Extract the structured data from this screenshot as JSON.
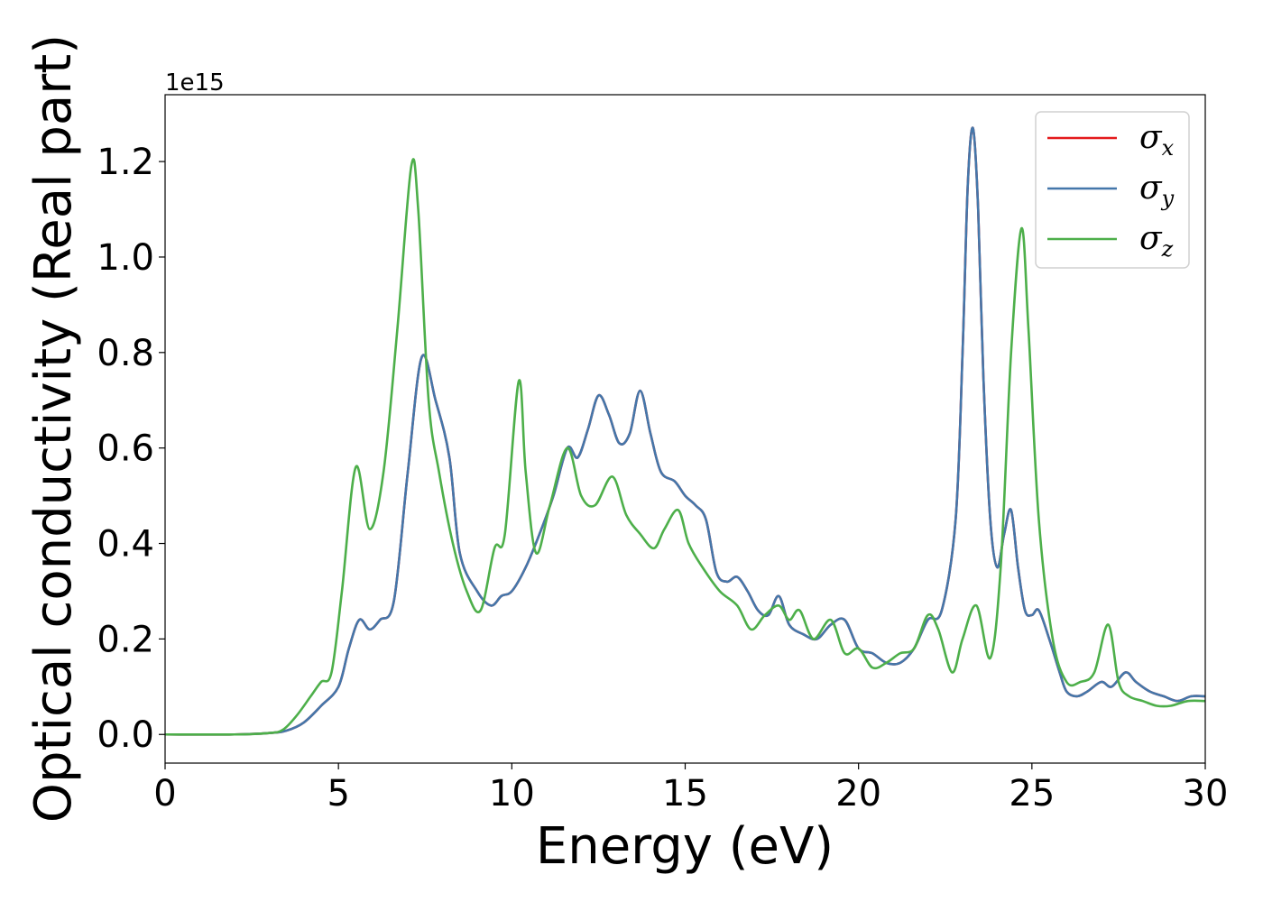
{
  "chart_data": {
    "type": "line",
    "title": "",
    "xlabel": "Energy (eV)",
    "ylabel": "Optical conductivity (Real part)",
    "y_offset_label": "1e15",
    "xlim": [
      0,
      30
    ],
    "ylim": [
      -0.06,
      1.34
    ],
    "xticks": [
      0,
      5,
      10,
      15,
      20,
      25,
      30
    ],
    "xtick_labels": [
      "0",
      "5",
      "10",
      "15",
      "20",
      "25",
      "30"
    ],
    "yticks": [
      0.0,
      0.2,
      0.4,
      0.6,
      0.8,
      1.0,
      1.2
    ],
    "ytick_labels": [
      "0.0",
      "0.2",
      "0.4",
      "0.6",
      "0.8",
      "1.0",
      "1.2"
    ],
    "grid": false,
    "legend_position": "upper-right",
    "series": [
      {
        "name": "σx",
        "legend_base": "σ",
        "legend_sub": "x",
        "color": "#e41a1c",
        "x": [
          0,
          2,
          3,
          3.5,
          4,
          4.5,
          5,
          5.3,
          5.6,
          5.9,
          6.2,
          6.6,
          7.0,
          7.4,
          7.8,
          8.2,
          8.5,
          9.0,
          9.4,
          9.7,
          10.0,
          10.4,
          10.8,
          11.2,
          11.6,
          11.9,
          12.2,
          12.5,
          12.8,
          13.1,
          13.4,
          13.7,
          14.0,
          14.3,
          14.7,
          15.0,
          15.3,
          15.6,
          15.9,
          16.2,
          16.5,
          16.8,
          17.1,
          17.4,
          17.7,
          18.0,
          18.4,
          18.8,
          19.2,
          19.6,
          20.0,
          20.4,
          20.8,
          21.2,
          21.6,
          22.0,
          22.4,
          22.8,
          23.0,
          23.15,
          23.3,
          23.45,
          23.6,
          23.8,
          24.0,
          24.2,
          24.4,
          24.6,
          24.8,
          25.0,
          25.2,
          25.5,
          25.8,
          26.0,
          26.3,
          26.6,
          27.0,
          27.3,
          27.7,
          28.0,
          28.4,
          28.8,
          29.2,
          29.6,
          30
        ],
        "values": [
          0,
          0,
          0.003,
          0.008,
          0.025,
          0.06,
          0.1,
          0.18,
          0.24,
          0.22,
          0.24,
          0.28,
          0.55,
          0.79,
          0.7,
          0.58,
          0.38,
          0.3,
          0.27,
          0.29,
          0.3,
          0.35,
          0.42,
          0.5,
          0.6,
          0.58,
          0.64,
          0.71,
          0.67,
          0.61,
          0.63,
          0.72,
          0.63,
          0.55,
          0.53,
          0.5,
          0.48,
          0.45,
          0.34,
          0.32,
          0.33,
          0.3,
          0.26,
          0.25,
          0.29,
          0.23,
          0.21,
          0.2,
          0.23,
          0.24,
          0.18,
          0.17,
          0.15,
          0.15,
          0.18,
          0.24,
          0.26,
          0.45,
          0.8,
          1.15,
          1.27,
          1.1,
          0.75,
          0.45,
          0.35,
          0.42,
          0.47,
          0.35,
          0.26,
          0.25,
          0.26,
          0.2,
          0.13,
          0.09,
          0.08,
          0.09,
          0.11,
          0.1,
          0.13,
          0.11,
          0.09,
          0.08,
          0.07,
          0.08,
          0.08
        ]
      },
      {
        "name": "σy",
        "legend_base": "σ",
        "legend_sub": "y",
        "color": "#4477aa",
        "x": [
          0,
          2,
          3,
          3.5,
          4,
          4.5,
          5,
          5.3,
          5.6,
          5.9,
          6.2,
          6.6,
          7.0,
          7.4,
          7.8,
          8.2,
          8.5,
          9.0,
          9.4,
          9.7,
          10.0,
          10.4,
          10.8,
          11.2,
          11.6,
          11.9,
          12.2,
          12.5,
          12.8,
          13.1,
          13.4,
          13.7,
          14.0,
          14.3,
          14.7,
          15.0,
          15.3,
          15.6,
          15.9,
          16.2,
          16.5,
          16.8,
          17.1,
          17.4,
          17.7,
          18.0,
          18.4,
          18.8,
          19.2,
          19.6,
          20.0,
          20.4,
          20.8,
          21.2,
          21.6,
          22.0,
          22.4,
          22.8,
          23.0,
          23.15,
          23.3,
          23.45,
          23.6,
          23.8,
          24.0,
          24.2,
          24.4,
          24.6,
          24.8,
          25.0,
          25.2,
          25.5,
          25.8,
          26.0,
          26.3,
          26.6,
          27.0,
          27.3,
          27.7,
          28.0,
          28.4,
          28.8,
          29.2,
          29.6,
          30
        ],
        "values": [
          0,
          0,
          0.003,
          0.008,
          0.025,
          0.06,
          0.1,
          0.18,
          0.24,
          0.22,
          0.24,
          0.28,
          0.55,
          0.79,
          0.7,
          0.58,
          0.38,
          0.3,
          0.27,
          0.29,
          0.3,
          0.35,
          0.42,
          0.5,
          0.6,
          0.58,
          0.64,
          0.71,
          0.67,
          0.61,
          0.63,
          0.72,
          0.63,
          0.55,
          0.53,
          0.5,
          0.48,
          0.45,
          0.34,
          0.32,
          0.33,
          0.3,
          0.26,
          0.25,
          0.29,
          0.23,
          0.21,
          0.2,
          0.23,
          0.24,
          0.18,
          0.17,
          0.15,
          0.15,
          0.18,
          0.24,
          0.26,
          0.45,
          0.8,
          1.15,
          1.27,
          1.1,
          0.75,
          0.45,
          0.35,
          0.42,
          0.47,
          0.35,
          0.26,
          0.25,
          0.26,
          0.2,
          0.13,
          0.09,
          0.08,
          0.09,
          0.11,
          0.1,
          0.13,
          0.11,
          0.09,
          0.08,
          0.07,
          0.08,
          0.08
        ]
      },
      {
        "name": "σz",
        "legend_base": "σ",
        "legend_sub": "z",
        "color": "#4daf4a",
        "x": [
          0,
          2,
          3,
          3.4,
          3.8,
          4.2,
          4.5,
          4.8,
          5.1,
          5.5,
          5.9,
          6.3,
          6.7,
          7.1,
          7.3,
          7.6,
          7.9,
          8.3,
          8.7,
          9.1,
          9.5,
          9.8,
          10.2,
          10.4,
          10.7,
          11.1,
          11.6,
          12.0,
          12.4,
          12.9,
          13.3,
          13.7,
          14.1,
          14.4,
          14.8,
          15.1,
          15.5,
          16.0,
          16.5,
          16.9,
          17.3,
          17.7,
          18.0,
          18.3,
          18.7,
          19.2,
          19.6,
          20.0,
          20.4,
          20.8,
          21.2,
          21.6,
          22.0,
          22.3,
          22.7,
          23.0,
          23.4,
          23.8,
          24.1,
          24.4,
          24.7,
          24.9,
          25.2,
          25.6,
          26.0,
          26.4,
          26.8,
          27.2,
          27.5,
          27.8,
          28.2,
          28.6,
          29.0,
          29.5,
          30
        ],
        "values": [
          0,
          0,
          0.003,
          0.01,
          0.04,
          0.08,
          0.11,
          0.13,
          0.3,
          0.56,
          0.43,
          0.55,
          0.85,
          1.19,
          1.1,
          0.7,
          0.55,
          0.4,
          0.3,
          0.26,
          0.39,
          0.42,
          0.74,
          0.55,
          0.38,
          0.48,
          0.6,
          0.5,
          0.48,
          0.54,
          0.46,
          0.42,
          0.39,
          0.43,
          0.47,
          0.4,
          0.35,
          0.3,
          0.27,
          0.22,
          0.25,
          0.27,
          0.24,
          0.26,
          0.2,
          0.24,
          0.17,
          0.18,
          0.14,
          0.15,
          0.17,
          0.18,
          0.25,
          0.22,
          0.13,
          0.2,
          0.27,
          0.16,
          0.35,
          0.8,
          1.06,
          0.85,
          0.45,
          0.2,
          0.11,
          0.11,
          0.13,
          0.23,
          0.11,
          0.08,
          0.07,
          0.06,
          0.06,
          0.07,
          0.07
        ]
      }
    ]
  }
}
